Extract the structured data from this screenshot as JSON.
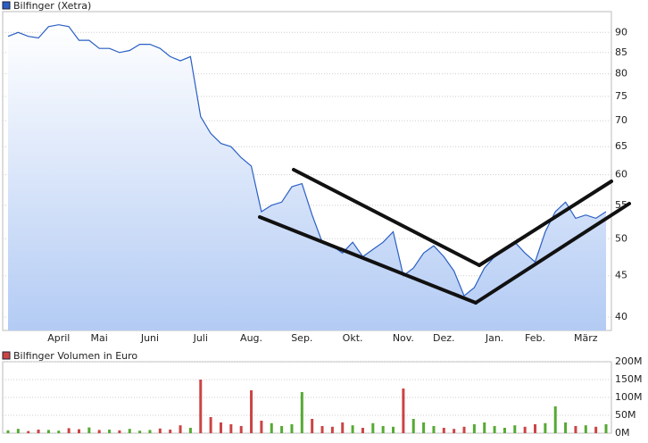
{
  "chart_data": [
    {
      "type": "line",
      "categories": [
        null,
        null,
        null,
        null,
        null,
        "April",
        null,
        null,
        null,
        "Mai",
        null,
        null,
        null,
        null,
        "Juni",
        null,
        null,
        null,
        null,
        "Juli",
        null,
        null,
        null,
        null,
        "Aug.",
        null,
        null,
        null,
        null,
        "Sep.",
        null,
        null,
        null,
        null,
        "Okt.",
        null,
        null,
        null,
        null,
        "Nov.",
        null,
        null,
        null,
        "Dez.",
        null,
        null,
        null,
        null,
        "Jan.",
        null,
        null,
        null,
        "Feb.",
        null,
        null,
        null,
        null,
        "März",
        null,
        null
      ],
      "series": [
        {
          "name": "Bilfinger (Xetra)",
          "color": "#2a5fc4",
          "values": [
            89,
            90,
            89,
            88.6,
            91.5,
            92,
            91.5,
            88,
            88,
            86,
            86,
            85,
            85.5,
            87,
            87,
            86,
            84,
            83,
            84,
            70.8,
            67.5,
            65.6,
            65,
            63,
            61.5,
            54,
            55,
            55.5,
            58,
            58.5,
            53.5,
            49.5,
            49,
            48,
            49.5,
            47.5,
            48.5,
            49.5,
            51,
            45,
            46,
            48,
            49,
            47.5,
            45.6,
            42.5,
            43.5,
            46,
            47.5,
            48.5,
            49.5,
            48,
            46.8,
            51,
            54,
            55.5,
            53,
            53.5,
            53,
            54
          ]
        }
      ],
      "ylim": [
        38.5,
        95.5
      ],
      "yticks": [
        40,
        45,
        50,
        55,
        60,
        65,
        70,
        75,
        80,
        85,
        90
      ],
      "log_scale": true,
      "grid": true,
      "area": true
    },
    {
      "type": "bar",
      "series": [
        {
          "name": "Bilfinger Volumen in Euro",
          "color": "#cc4444",
          "values": [
            8000000,
            12000000,
            6000000,
            10000000,
            9000000,
            7000000,
            14000000,
            11000000,
            16000000,
            9000000,
            10000000,
            8000000,
            12000000,
            7000000,
            9000000,
            13000000,
            10000000,
            22000000,
            15000000,
            150000000,
            45000000,
            30000000,
            25000000,
            20000000,
            120000000,
            35000000,
            28000000,
            20000000,
            25000000,
            115000000,
            40000000,
            20000000,
            18000000,
            30000000,
            22000000,
            15000000,
            28000000,
            20000000,
            18000000,
            125000000,
            40000000,
            30000000,
            20000000,
            15000000,
            12000000,
            18000000,
            25000000,
            30000000,
            20000000,
            15000000,
            22000000,
            18000000,
            25000000,
            28000000,
            75000000,
            30000000,
            20000000,
            22000000,
            18000000,
            25000000
          ]
        }
      ],
      "up_color": "#55aa33",
      "down_color": "#cc4444",
      "ylim": [
        0,
        200000000
      ],
      "yticks": [
        {
          "value": 0,
          "label": "0M"
        },
        {
          "value": 50000000,
          "label": "50M"
        },
        {
          "value": 100000000,
          "label": "100M"
        },
        {
          "value": 150000000,
          "label": "150M"
        },
        {
          "value": 200000000,
          "label": "200M"
        }
      ],
      "grid": true
    }
  ]
}
